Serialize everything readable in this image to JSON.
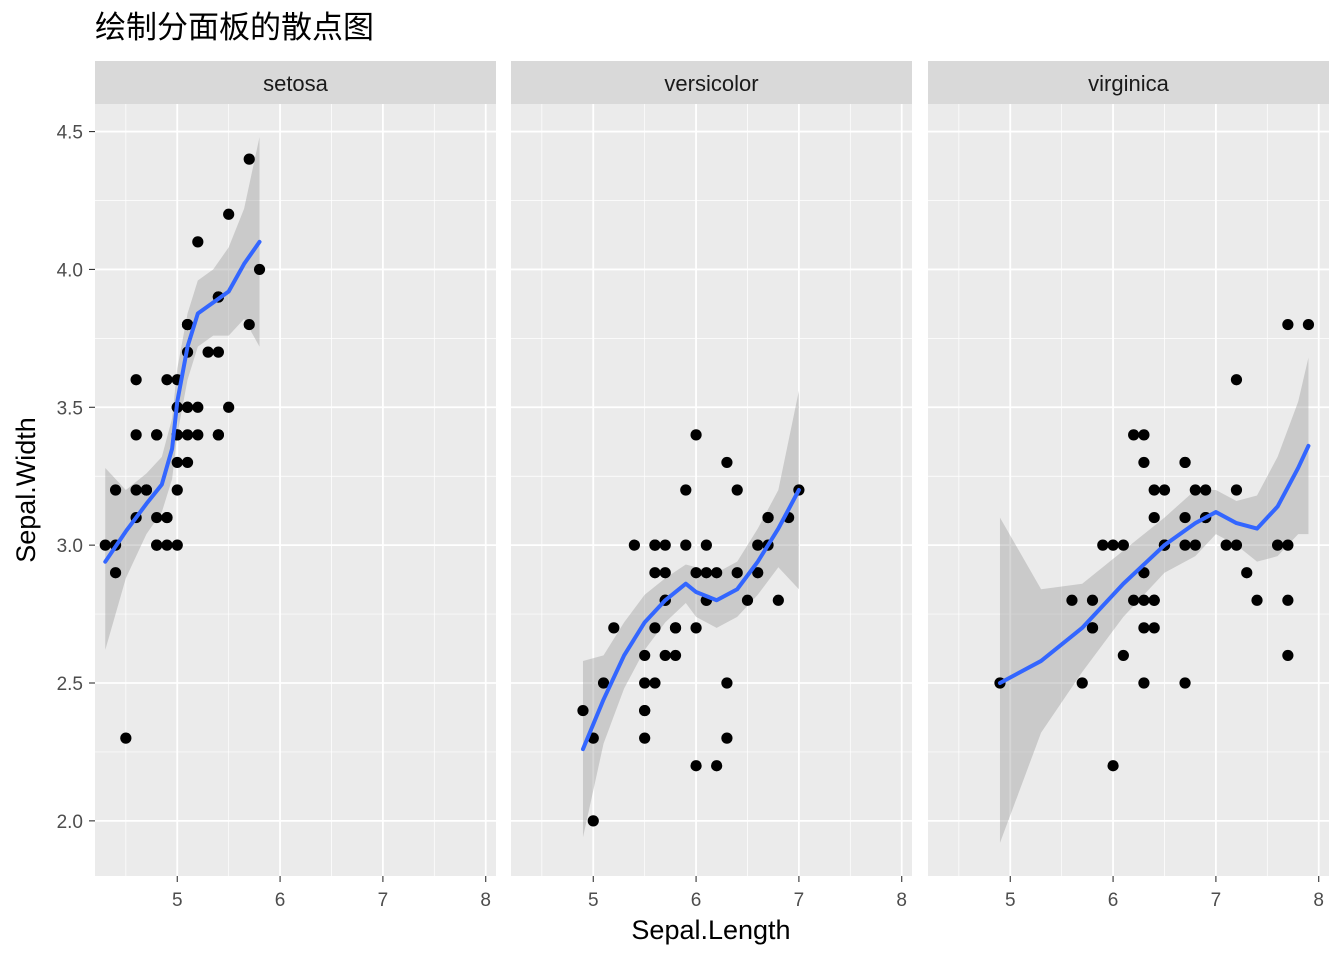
{
  "chart_data": {
    "type": "scatter",
    "title": "绘制分面板的散点图",
    "xlabel": "Sepal.Length",
    "ylabel": "Sepal.Width",
    "xlim": [
      4.2,
      8.1
    ],
    "ylim": [
      1.8,
      4.6
    ],
    "x_ticks": [
      5,
      6,
      7,
      8
    ],
    "y_ticks": [
      2.0,
      2.5,
      3.0,
      3.5,
      4.0,
      4.5
    ],
    "y_tick_labels": [
      "2.0",
      "2.5",
      "3.0",
      "3.5",
      "4.0",
      "4.5"
    ],
    "grid": true,
    "colors": {
      "panel_bg": "#ebebeb",
      "strip_bg": "#d9d9d9",
      "grid": "#ffffff",
      "point": "#000000",
      "smooth_line": "#3366ff",
      "ribbon": "#999999"
    },
    "facets": [
      {
        "label": "setosa",
        "points": [
          [
            5.1,
            3.5
          ],
          [
            4.9,
            3.0
          ],
          [
            4.7,
            3.2
          ],
          [
            4.6,
            3.1
          ],
          [
            5.0,
            3.6
          ],
          [
            5.4,
            3.9
          ],
          [
            4.6,
            3.4
          ],
          [
            5.0,
            3.4
          ],
          [
            4.4,
            2.9
          ],
          [
            4.9,
            3.1
          ],
          [
            5.4,
            3.7
          ],
          [
            4.8,
            3.4
          ],
          [
            4.8,
            3.0
          ],
          [
            4.3,
            3.0
          ],
          [
            5.8,
            4.0
          ],
          [
            5.7,
            4.4
          ],
          [
            5.4,
            3.9
          ],
          [
            5.1,
            3.5
          ],
          [
            5.7,
            3.8
          ],
          [
            5.1,
            3.8
          ],
          [
            5.4,
            3.4
          ],
          [
            5.1,
            3.7
          ],
          [
            4.6,
            3.6
          ],
          [
            5.1,
            3.3
          ],
          [
            4.8,
            3.4
          ],
          [
            5.0,
            3.0
          ],
          [
            5.0,
            3.4
          ],
          [
            5.2,
            3.5
          ],
          [
            5.2,
            3.4
          ],
          [
            4.7,
            3.2
          ],
          [
            4.8,
            3.1
          ],
          [
            5.4,
            3.4
          ],
          [
            5.2,
            4.1
          ],
          [
            5.5,
            4.2
          ],
          [
            4.9,
            3.1
          ],
          [
            5.0,
            3.2
          ],
          [
            5.5,
            3.5
          ],
          [
            4.9,
            3.6
          ],
          [
            4.4,
            3.0
          ],
          [
            5.1,
            3.4
          ],
          [
            5.0,
            3.5
          ],
          [
            4.5,
            2.3
          ],
          [
            4.4,
            3.2
          ],
          [
            5.0,
            3.5
          ],
          [
            5.1,
            3.8
          ],
          [
            4.8,
            3.0
          ],
          [
            5.1,
            3.8
          ],
          [
            4.6,
            3.2
          ],
          [
            5.3,
            3.7
          ],
          [
            5.0,
            3.3
          ]
        ],
        "smooth": [
          [
            4.3,
            2.94
          ],
          [
            4.5,
            3.05
          ],
          [
            4.7,
            3.15
          ],
          [
            4.85,
            3.22
          ],
          [
            4.95,
            3.35
          ],
          [
            5.0,
            3.52
          ],
          [
            5.1,
            3.72
          ],
          [
            5.2,
            3.84
          ],
          [
            5.35,
            3.88
          ],
          [
            5.5,
            3.92
          ],
          [
            5.65,
            4.02
          ],
          [
            5.8,
            4.1
          ]
        ],
        "ribbon_upper": [
          [
            4.3,
            3.28
          ],
          [
            4.5,
            3.2
          ],
          [
            4.7,
            3.26
          ],
          [
            4.85,
            3.32
          ],
          [
            4.95,
            3.46
          ],
          [
            5.0,
            3.64
          ],
          [
            5.1,
            3.84
          ],
          [
            5.2,
            3.96
          ],
          [
            5.35,
            4.0
          ],
          [
            5.5,
            4.08
          ],
          [
            5.65,
            4.22
          ],
          [
            5.8,
            4.48
          ]
        ],
        "ribbon_lower": [
          [
            4.3,
            2.62
          ],
          [
            4.5,
            2.88
          ],
          [
            4.7,
            3.04
          ],
          [
            4.85,
            3.12
          ],
          [
            4.95,
            3.24
          ],
          [
            5.0,
            3.4
          ],
          [
            5.1,
            3.6
          ],
          [
            5.2,
            3.72
          ],
          [
            5.35,
            3.76
          ],
          [
            5.5,
            3.76
          ],
          [
            5.65,
            3.82
          ],
          [
            5.8,
            3.72
          ]
        ]
      },
      {
        "label": "versicolor",
        "points": [
          [
            7.0,
            3.2
          ],
          [
            6.4,
            3.2
          ],
          [
            6.9,
            3.1
          ],
          [
            5.5,
            2.3
          ],
          [
            6.5,
            2.8
          ],
          [
            5.7,
            2.8
          ],
          [
            6.3,
            3.3
          ],
          [
            4.9,
            2.4
          ],
          [
            6.6,
            2.9
          ],
          [
            5.2,
            2.7
          ],
          [
            5.0,
            2.0
          ],
          [
            5.9,
            3.0
          ],
          [
            6.0,
            2.2
          ],
          [
            6.1,
            2.9
          ],
          [
            5.6,
            2.9
          ],
          [
            6.7,
            3.1
          ],
          [
            5.6,
            3.0
          ],
          [
            5.8,
            2.7
          ],
          [
            6.2,
            2.2
          ],
          [
            5.6,
            2.5
          ],
          [
            5.9,
            3.2
          ],
          [
            6.1,
            2.8
          ],
          [
            6.3,
            2.5
          ],
          [
            6.1,
            2.8
          ],
          [
            6.4,
            2.9
          ],
          [
            6.6,
            3.0
          ],
          [
            6.8,
            2.8
          ],
          [
            6.7,
            3.0
          ],
          [
            6.0,
            2.9
          ],
          [
            5.7,
            2.6
          ],
          [
            5.5,
            2.4
          ],
          [
            5.5,
            2.4
          ],
          [
            5.8,
            2.7
          ],
          [
            6.0,
            2.7
          ],
          [
            5.4,
            3.0
          ],
          [
            6.0,
            3.4
          ],
          [
            6.7,
            3.1
          ],
          [
            6.3,
            2.3
          ],
          [
            5.6,
            3.0
          ],
          [
            5.5,
            2.5
          ],
          [
            5.5,
            2.6
          ],
          [
            6.1,
            3.0
          ],
          [
            5.8,
            2.6
          ],
          [
            5.0,
            2.3
          ],
          [
            5.6,
            2.7
          ],
          [
            5.7,
            3.0
          ],
          [
            5.7,
            2.9
          ],
          [
            6.2,
            2.9
          ],
          [
            5.1,
            2.5
          ],
          [
            5.7,
            2.8
          ]
        ],
        "smooth": [
          [
            4.9,
            2.26
          ],
          [
            5.1,
            2.44
          ],
          [
            5.3,
            2.6
          ],
          [
            5.5,
            2.72
          ],
          [
            5.7,
            2.8
          ],
          [
            5.9,
            2.86
          ],
          [
            6.0,
            2.83
          ],
          [
            6.2,
            2.8
          ],
          [
            6.4,
            2.84
          ],
          [
            6.6,
            2.94
          ],
          [
            6.8,
            3.06
          ],
          [
            7.0,
            3.2
          ]
        ],
        "ribbon_upper": [
          [
            4.9,
            2.58
          ],
          [
            5.1,
            2.6
          ],
          [
            5.3,
            2.72
          ],
          [
            5.5,
            2.82
          ],
          [
            5.7,
            2.88
          ],
          [
            5.9,
            2.93
          ],
          [
            6.0,
            2.92
          ],
          [
            6.2,
            2.9
          ],
          [
            6.4,
            2.94
          ],
          [
            6.6,
            3.06
          ],
          [
            6.8,
            3.2
          ],
          [
            7.0,
            3.56
          ]
        ],
        "ribbon_lower": [
          [
            4.9,
            1.94
          ],
          [
            5.1,
            2.28
          ],
          [
            5.3,
            2.48
          ],
          [
            5.5,
            2.62
          ],
          [
            5.7,
            2.72
          ],
          [
            5.9,
            2.79
          ],
          [
            6.0,
            2.74
          ],
          [
            6.2,
            2.7
          ],
          [
            6.4,
            2.74
          ],
          [
            6.6,
            2.82
          ],
          [
            6.8,
            2.92
          ],
          [
            7.0,
            2.84
          ]
        ]
      },
      {
        "label": "virginica",
        "points": [
          [
            6.3,
            3.3
          ],
          [
            5.8,
            2.7
          ],
          [
            7.1,
            3.0
          ],
          [
            6.3,
            2.9
          ],
          [
            6.5,
            3.0
          ],
          [
            7.6,
            3.0
          ],
          [
            4.9,
            2.5
          ],
          [
            7.3,
            2.9
          ],
          [
            6.7,
            2.5
          ],
          [
            7.2,
            3.6
          ],
          [
            6.5,
            3.2
          ],
          [
            6.4,
            2.7
          ],
          [
            6.8,
            3.0
          ],
          [
            5.7,
            2.5
          ],
          [
            5.8,
            2.8
          ],
          [
            6.4,
            3.2
          ],
          [
            6.5,
            3.0
          ],
          [
            7.7,
            3.8
          ],
          [
            7.7,
            2.6
          ],
          [
            6.0,
            2.2
          ],
          [
            6.9,
            3.2
          ],
          [
            5.6,
            2.8
          ],
          [
            7.7,
            2.8
          ],
          [
            6.3,
            2.7
          ],
          [
            6.7,
            3.3
          ],
          [
            7.2,
            3.2
          ],
          [
            6.2,
            2.8
          ],
          [
            6.1,
            3.0
          ],
          [
            6.4,
            2.8
          ],
          [
            7.2,
            3.0
          ],
          [
            7.4,
            2.8
          ],
          [
            7.9,
            3.8
          ],
          [
            6.4,
            2.8
          ],
          [
            6.3,
            2.8
          ],
          [
            6.1,
            2.6
          ],
          [
            7.7,
            3.0
          ],
          [
            6.3,
            3.4
          ],
          [
            6.4,
            3.1
          ],
          [
            6.0,
            3.0
          ],
          [
            6.9,
            3.1
          ],
          [
            6.7,
            3.1
          ],
          [
            6.9,
            3.1
          ],
          [
            5.8,
            2.7
          ],
          [
            6.8,
            3.2
          ],
          [
            6.7,
            3.3
          ],
          [
            6.7,
            3.0
          ],
          [
            6.3,
            2.5
          ],
          [
            6.5,
            3.0
          ],
          [
            6.2,
            3.4
          ],
          [
            5.9,
            3.0
          ]
        ],
        "smooth": [
          [
            4.9,
            2.5
          ],
          [
            5.3,
            2.58
          ],
          [
            5.7,
            2.7
          ],
          [
            6.1,
            2.86
          ],
          [
            6.5,
            3.0
          ],
          [
            6.8,
            3.08
          ],
          [
            7.0,
            3.12
          ],
          [
            7.2,
            3.08
          ],
          [
            7.4,
            3.06
          ],
          [
            7.6,
            3.14
          ],
          [
            7.8,
            3.28
          ],
          [
            7.9,
            3.36
          ]
        ],
        "ribbon_upper": [
          [
            4.9,
            3.1
          ],
          [
            5.3,
            2.84
          ],
          [
            5.7,
            2.86
          ],
          [
            6.1,
            2.98
          ],
          [
            6.5,
            3.1
          ],
          [
            6.8,
            3.2
          ],
          [
            7.0,
            3.2
          ],
          [
            7.2,
            3.16
          ],
          [
            7.4,
            3.18
          ],
          [
            7.6,
            3.32
          ],
          [
            7.8,
            3.52
          ],
          [
            7.9,
            3.68
          ]
        ],
        "ribbon_lower": [
          [
            4.9,
            1.92
          ],
          [
            5.3,
            2.32
          ],
          [
            5.7,
            2.54
          ],
          [
            6.1,
            2.74
          ],
          [
            6.5,
            2.9
          ],
          [
            6.8,
            2.96
          ],
          [
            7.0,
            3.04
          ],
          [
            7.2,
            3.0
          ],
          [
            7.4,
            2.94
          ],
          [
            7.6,
            2.96
          ],
          [
            7.8,
            3.04
          ],
          [
            7.9,
            3.04
          ]
        ]
      }
    ]
  }
}
